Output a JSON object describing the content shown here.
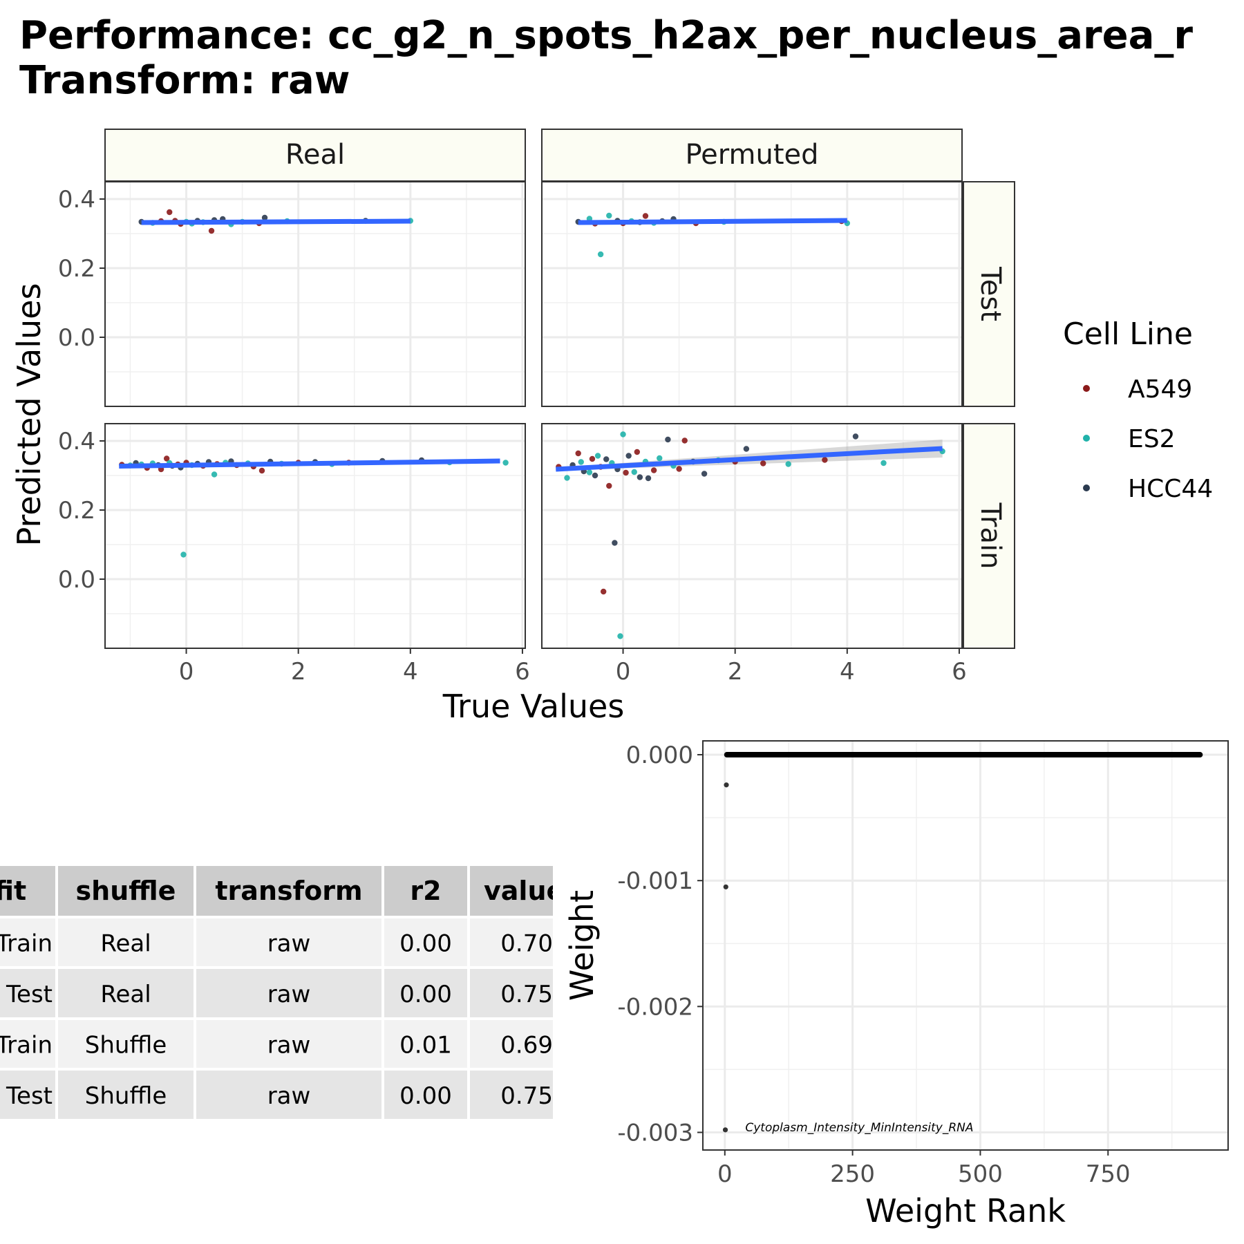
{
  "title_lines": [
    "Performance: cc_g2_n_spots_h2ax_per_nucleus_area_r",
    "Transform: raw"
  ],
  "colors": {
    "A549": "#8b1a1a",
    "ES2": "#20b2aa",
    "HCC44": "#2b3a4f",
    "fit_line": "#3366ff",
    "band": "#a9a9a9",
    "strip_bg": "#fcfdf3"
  },
  "chart_data": [
    {
      "type": "scatter",
      "facets": {
        "columns": [
          "Real",
          "Permuted"
        ],
        "rows": [
          "Test",
          "Train"
        ]
      },
      "xlabel": "True Values",
      "ylabel": "Predicted Values",
      "xlim": [
        -1.45,
        6.05
      ],
      "ylim": [
        -0.2,
        0.45
      ],
      "xticks": [
        0,
        2,
        4,
        6
      ],
      "yticks": [
        0.0,
        0.2,
        0.4
      ],
      "grid": true,
      "legend": {
        "title": "Cell Line",
        "position": "right",
        "entries": [
          "A549",
          "ES2",
          "HCC44"
        ]
      },
      "panels": [
        {
          "col": "Real",
          "row": "Test",
          "fit": {
            "x": [
              -0.8,
              4.0
            ],
            "y": [
              0.332,
              0.336
            ],
            "band": 0.002
          },
          "points": [
            {
              "x": -0.8,
              "y": 0.334,
              "s": "HCC44"
            },
            {
              "x": -0.6,
              "y": 0.331,
              "s": "ES2"
            },
            {
              "x": -0.45,
              "y": 0.336,
              "s": "A549"
            },
            {
              "x": -0.3,
              "y": 0.362,
              "s": "A549"
            },
            {
              "x": -0.2,
              "y": 0.337,
              "s": "A549"
            },
            {
              "x": -0.1,
              "y": 0.328,
              "s": "A549"
            },
            {
              "x": 0.0,
              "y": 0.334,
              "s": "ES2"
            },
            {
              "x": 0.1,
              "y": 0.329,
              "s": "ES2"
            },
            {
              "x": 0.2,
              "y": 0.337,
              "s": "HCC44"
            },
            {
              "x": 0.3,
              "y": 0.333,
              "s": "ES2"
            },
            {
              "x": 0.45,
              "y": 0.308,
              "s": "A549"
            },
            {
              "x": 0.5,
              "y": 0.339,
              "s": "HCC44"
            },
            {
              "x": 0.65,
              "y": 0.342,
              "s": "HCC44"
            },
            {
              "x": 0.8,
              "y": 0.327,
              "s": "ES2"
            },
            {
              "x": 1.0,
              "y": 0.334,
              "s": "ES2"
            },
            {
              "x": 1.3,
              "y": 0.33,
              "s": "A549"
            },
            {
              "x": 1.4,
              "y": 0.346,
              "s": "HCC44"
            },
            {
              "x": 1.8,
              "y": 0.336,
              "s": "ES2"
            },
            {
              "x": 3.2,
              "y": 0.337,
              "s": "HCC44"
            },
            {
              "x": 4.0,
              "y": 0.337,
              "s": "ES2"
            }
          ]
        },
        {
          "col": "Permuted",
          "row": "Test",
          "fit": {
            "x": [
              -0.8,
              4.0
            ],
            "y": [
              0.332,
              0.338
            ],
            "band": 0.006
          },
          "points": [
            {
              "x": -0.8,
              "y": 0.334,
              "s": "HCC44"
            },
            {
              "x": -0.6,
              "y": 0.343,
              "s": "ES2"
            },
            {
              "x": -0.5,
              "y": 0.329,
              "s": "A549"
            },
            {
              "x": -0.4,
              "y": 0.24,
              "s": "ES2"
            },
            {
              "x": -0.25,
              "y": 0.352,
              "s": "ES2"
            },
            {
              "x": -0.1,
              "y": 0.337,
              "s": "HCC44"
            },
            {
              "x": 0.0,
              "y": 0.33,
              "s": "A549"
            },
            {
              "x": 0.15,
              "y": 0.336,
              "s": "ES2"
            },
            {
              "x": 0.3,
              "y": 0.333,
              "s": "HCC44"
            },
            {
              "x": 0.4,
              "y": 0.351,
              "s": "A549"
            },
            {
              "x": 0.55,
              "y": 0.331,
              "s": "ES2"
            },
            {
              "x": 0.7,
              "y": 0.336,
              "s": "HCC44"
            },
            {
              "x": 0.9,
              "y": 0.342,
              "s": "HCC44"
            },
            {
              "x": 1.3,
              "y": 0.33,
              "s": "A549"
            },
            {
              "x": 1.8,
              "y": 0.334,
              "s": "ES2"
            },
            {
              "x": 3.9,
              "y": 0.336,
              "s": "A549"
            },
            {
              "x": 4.0,
              "y": 0.33,
              "s": "ES2"
            }
          ]
        },
        {
          "col": "Real",
          "row": "Train",
          "fit": {
            "x": [
              -1.2,
              5.6
            ],
            "y": [
              0.327,
              0.342
            ],
            "band": 0.002
          },
          "points": [
            {
              "x": -1.15,
              "y": 0.331,
              "s": "A549"
            },
            {
              "x": -1.0,
              "y": 0.329,
              "s": "ES2"
            },
            {
              "x": -0.9,
              "y": 0.336,
              "s": "HCC44"
            },
            {
              "x": -0.8,
              "y": 0.332,
              "s": "ES2"
            },
            {
              "x": -0.7,
              "y": 0.322,
              "s": "A549"
            },
            {
              "x": -0.6,
              "y": 0.335,
              "s": "ES2"
            },
            {
              "x": -0.5,
              "y": 0.33,
              "s": "HCC44"
            },
            {
              "x": -0.45,
              "y": 0.318,
              "s": "A549"
            },
            {
              "x": -0.35,
              "y": 0.349,
              "s": "A549"
            },
            {
              "x": -0.3,
              "y": 0.336,
              "s": "ES2"
            },
            {
              "x": -0.25,
              "y": 0.328,
              "s": "HCC44"
            },
            {
              "x": -0.15,
              "y": 0.332,
              "s": "A549"
            },
            {
              "x": -0.1,
              "y": 0.323,
              "s": "HCC44"
            },
            {
              "x": -0.05,
              "y": 0.071,
              "s": "ES2"
            },
            {
              "x": 0.0,
              "y": 0.337,
              "s": "A549"
            },
            {
              "x": 0.1,
              "y": 0.33,
              "s": "ES2"
            },
            {
              "x": 0.2,
              "y": 0.334,
              "s": "HCC44"
            },
            {
              "x": 0.3,
              "y": 0.328,
              "s": "A549"
            },
            {
              "x": 0.4,
              "y": 0.339,
              "s": "HCC44"
            },
            {
              "x": 0.5,
              "y": 0.303,
              "s": "ES2"
            },
            {
              "x": 0.55,
              "y": 0.333,
              "s": "A549"
            },
            {
              "x": 0.7,
              "y": 0.337,
              "s": "ES2"
            },
            {
              "x": 0.8,
              "y": 0.341,
              "s": "HCC44"
            },
            {
              "x": 0.9,
              "y": 0.33,
              "s": "A549"
            },
            {
              "x": 1.1,
              "y": 0.335,
              "s": "ES2"
            },
            {
              "x": 1.2,
              "y": 0.326,
              "s": "A549"
            },
            {
              "x": 1.35,
              "y": 0.314,
              "s": "A549"
            },
            {
              "x": 1.5,
              "y": 0.34,
              "s": "HCC44"
            },
            {
              "x": 1.7,
              "y": 0.334,
              "s": "ES2"
            },
            {
              "x": 2.0,
              "y": 0.337,
              "s": "A549"
            },
            {
              "x": 2.3,
              "y": 0.339,
              "s": "HCC44"
            },
            {
              "x": 2.6,
              "y": 0.333,
              "s": "ES2"
            },
            {
              "x": 2.9,
              "y": 0.337,
              "s": "A549"
            },
            {
              "x": 3.5,
              "y": 0.342,
              "s": "HCC44"
            },
            {
              "x": 4.2,
              "y": 0.344,
              "s": "HCC44"
            },
            {
              "x": 4.7,
              "y": 0.338,
              "s": "ES2"
            },
            {
              "x": 5.7,
              "y": 0.337,
              "s": "ES2"
            }
          ]
        },
        {
          "col": "Permuted",
          "row": "Train",
          "fit": {
            "x": [
              -1.2,
              5.7
            ],
            "y": [
              0.318,
              0.378
            ],
            "band_low": 0.004,
            "band_high": 0.026
          },
          "points": [
            {
              "x": -1.15,
              "y": 0.325,
              "s": "A549"
            },
            {
              "x": -1.0,
              "y": 0.293,
              "s": "ES2"
            },
            {
              "x": -0.9,
              "y": 0.33,
              "s": "HCC44"
            },
            {
              "x": -0.8,
              "y": 0.364,
              "s": "A549"
            },
            {
              "x": -0.75,
              "y": 0.339,
              "s": "ES2"
            },
            {
              "x": -0.7,
              "y": 0.312,
              "s": "HCC44"
            },
            {
              "x": -0.6,
              "y": 0.309,
              "s": "ES2"
            },
            {
              "x": -0.55,
              "y": 0.348,
              "s": "A549"
            },
            {
              "x": -0.5,
              "y": 0.3,
              "s": "HCC44"
            },
            {
              "x": -0.45,
              "y": 0.357,
              "s": "ES2"
            },
            {
              "x": -0.4,
              "y": 0.325,
              "s": "A549"
            },
            {
              "x": -0.35,
              "y": -0.036,
              "s": "A549"
            },
            {
              "x": -0.3,
              "y": 0.347,
              "s": "HCC44"
            },
            {
              "x": -0.25,
              "y": 0.27,
              "s": "A549"
            },
            {
              "x": -0.2,
              "y": 0.336,
              "s": "ES2"
            },
            {
              "x": -0.15,
              "y": 0.105,
              "s": "HCC44"
            },
            {
              "x": -0.1,
              "y": 0.318,
              "s": "HCC44"
            },
            {
              "x": -0.05,
              "y": -0.165,
              "s": "ES2"
            },
            {
              "x": 0.0,
              "y": 0.419,
              "s": "ES2"
            },
            {
              "x": 0.05,
              "y": 0.308,
              "s": "A549"
            },
            {
              "x": 0.1,
              "y": 0.357,
              "s": "HCC44"
            },
            {
              "x": 0.2,
              "y": 0.31,
              "s": "ES2"
            },
            {
              "x": 0.25,
              "y": 0.368,
              "s": "A549"
            },
            {
              "x": 0.3,
              "y": 0.295,
              "s": "HCC44"
            },
            {
              "x": 0.4,
              "y": 0.34,
              "s": "ES2"
            },
            {
              "x": 0.45,
              "y": 0.292,
              "s": "HCC44"
            },
            {
              "x": 0.55,
              "y": 0.315,
              "s": "A549"
            },
            {
              "x": 0.65,
              "y": 0.35,
              "s": "ES2"
            },
            {
              "x": 0.8,
              "y": 0.404,
              "s": "HCC44"
            },
            {
              "x": 0.9,
              "y": 0.328,
              "s": "ES2"
            },
            {
              "x": 1.0,
              "y": 0.319,
              "s": "A549"
            },
            {
              "x": 1.1,
              "y": 0.401,
              "s": "A549"
            },
            {
              "x": 1.25,
              "y": 0.34,
              "s": "HCC44"
            },
            {
              "x": 1.45,
              "y": 0.305,
              "s": "HCC44"
            },
            {
              "x": 1.7,
              "y": 0.344,
              "s": "ES2"
            },
            {
              "x": 2.0,
              "y": 0.34,
              "s": "A549"
            },
            {
              "x": 2.2,
              "y": 0.377,
              "s": "HCC44"
            },
            {
              "x": 2.5,
              "y": 0.335,
              "s": "A549"
            },
            {
              "x": 2.95,
              "y": 0.333,
              "s": "ES2"
            },
            {
              "x": 3.6,
              "y": 0.345,
              "s": "A549"
            },
            {
              "x": 4.15,
              "y": 0.413,
              "s": "HCC44"
            },
            {
              "x": 4.65,
              "y": 0.336,
              "s": "ES2"
            },
            {
              "x": 5.7,
              "y": 0.37,
              "s": "ES2"
            }
          ]
        }
      ]
    },
    {
      "type": "scatter",
      "xlabel": "Weight Rank",
      "ylabel": "Weight",
      "xlim": [
        -43,
        985
      ],
      "ylim": [
        -0.00314,
        0.00011
      ],
      "xticks": [
        0,
        250,
        500,
        750
      ],
      "yticks": [
        "0.000",
        "-0.001",
        "-0.002",
        "-0.003"
      ],
      "grid": true,
      "points": [
        {
          "x": 1,
          "y": -0.00298
        },
        {
          "x": 2,
          "y": -0.00105
        },
        {
          "x": 3,
          "y": -0.00024
        }
      ],
      "zero_run": {
        "from": 4,
        "to": 930,
        "y": 0
      },
      "annotation": {
        "text": "Cytoplasm_Intensity_MinIntensity_RNA",
        "x": 40,
        "y": -0.00296
      }
    },
    {
      "type": "table",
      "columns": [
        "fit",
        "shuffle",
        "transform",
        "r2",
        "value"
      ],
      "rows": [
        [
          "Train",
          "Real",
          "raw",
          "0.00",
          "0.70"
        ],
        [
          "Test",
          "Real",
          "raw",
          "0.00",
          "0.75"
        ],
        [
          "Train",
          "Shuffle",
          "raw",
          "0.01",
          "0.69"
        ],
        [
          "Test",
          "Shuffle",
          "raw",
          "0.00",
          "0.75"
        ]
      ]
    }
  ]
}
